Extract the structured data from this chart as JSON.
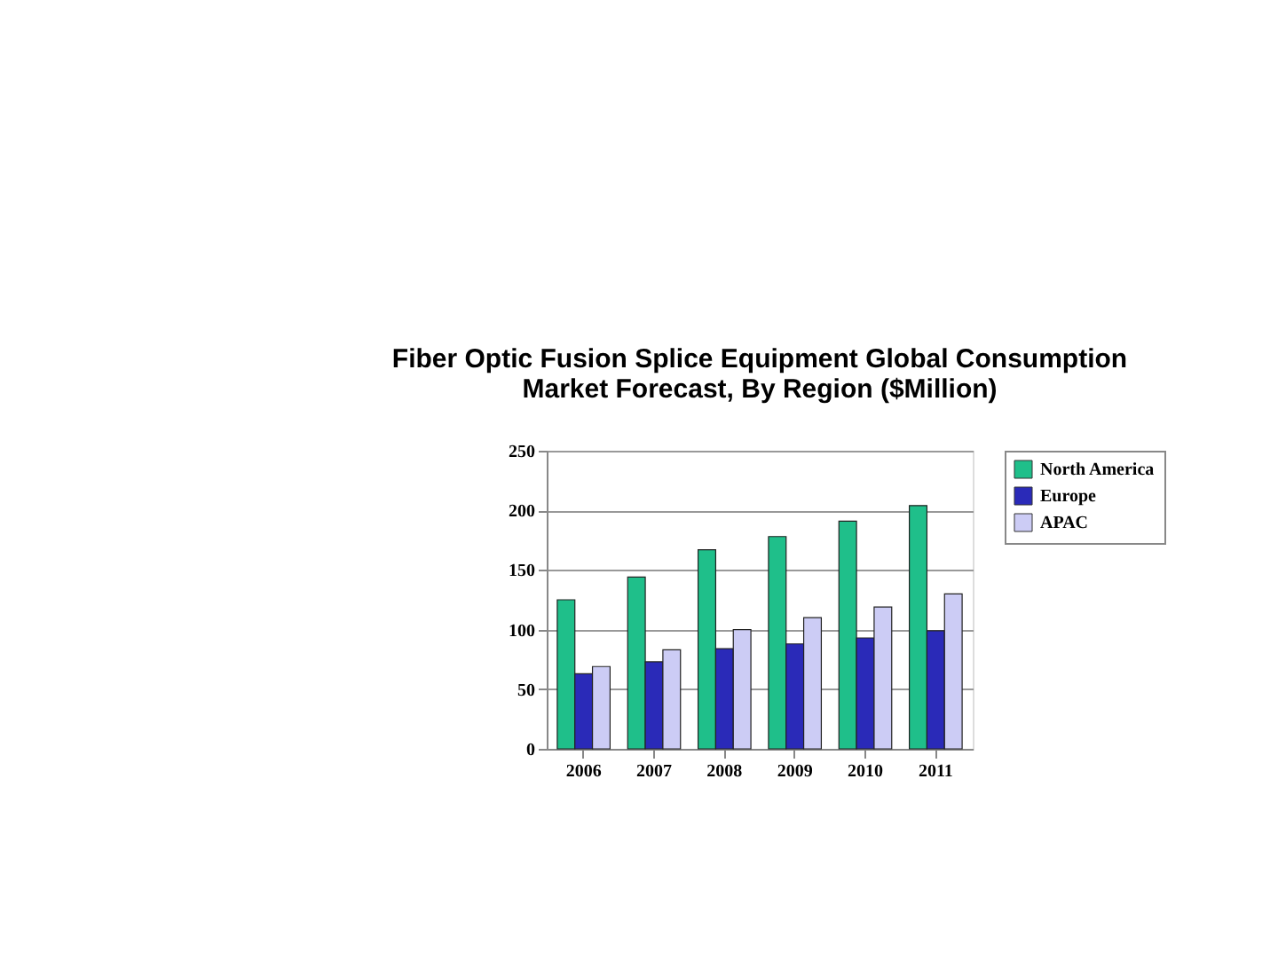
{
  "chart_data": {
    "type": "bar",
    "title": [
      "Fiber Optic Fusion Splice Equipment Global Consumption",
      "Market Forecast, By Region ($Million)"
    ],
    "categories": [
      "2006",
      "2007",
      "2008",
      "2009",
      "2010",
      "2011"
    ],
    "series": [
      {
        "name": "North America",
        "color": "#1fbf8a",
        "values": [
          125,
          144,
          167,
          178,
          191,
          204
        ]
      },
      {
        "name": "Europe",
        "color": "#2a2ab8",
        "values": [
          63,
          73,
          84,
          88,
          93,
          99
        ]
      },
      {
        "name": "APAC",
        "color": "#ccccf5",
        "values": [
          69,
          83,
          100,
          110,
          119,
          130
        ]
      }
    ],
    "ylim": [
      0,
      250
    ],
    "yticks": [
      0,
      50,
      100,
      150,
      200,
      250
    ],
    "grid": "y",
    "legend": "right"
  }
}
